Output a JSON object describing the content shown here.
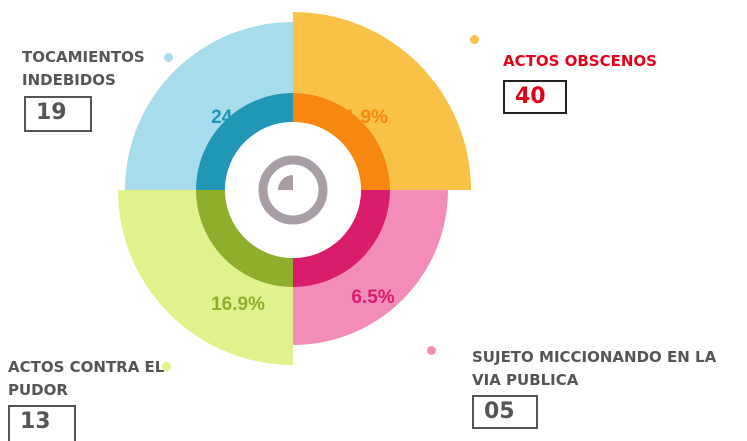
{
  "chart_data": {
    "type": "polar",
    "categories": [
      "TOCAMIENTOS INDEBIDOS",
      "ACTOS OBSCENOS",
      "ACTOS CONTRA EL PUDOR",
      "SUJETO MICCIONANDO EN LA VIA PUBLICA"
    ],
    "values": [
      24.7,
      51.9,
      16.9,
      6.5
    ],
    "value_labels": [
      "24.7%",
      "51.9%",
      "16.9%",
      "6.5%"
    ],
    "counts": [
      19,
      40,
      13,
      5
    ],
    "count_labels": [
      "19",
      "40",
      "13",
      "05"
    ],
    "colors": [
      "#a7dcec",
      "#f9c246",
      "#dff28c",
      "#f48cb9"
    ],
    "inner_colors": [
      "#1f97b5",
      "#f7870f",
      "#8fae2b",
      "#d91c6c"
    ]
  }
}
